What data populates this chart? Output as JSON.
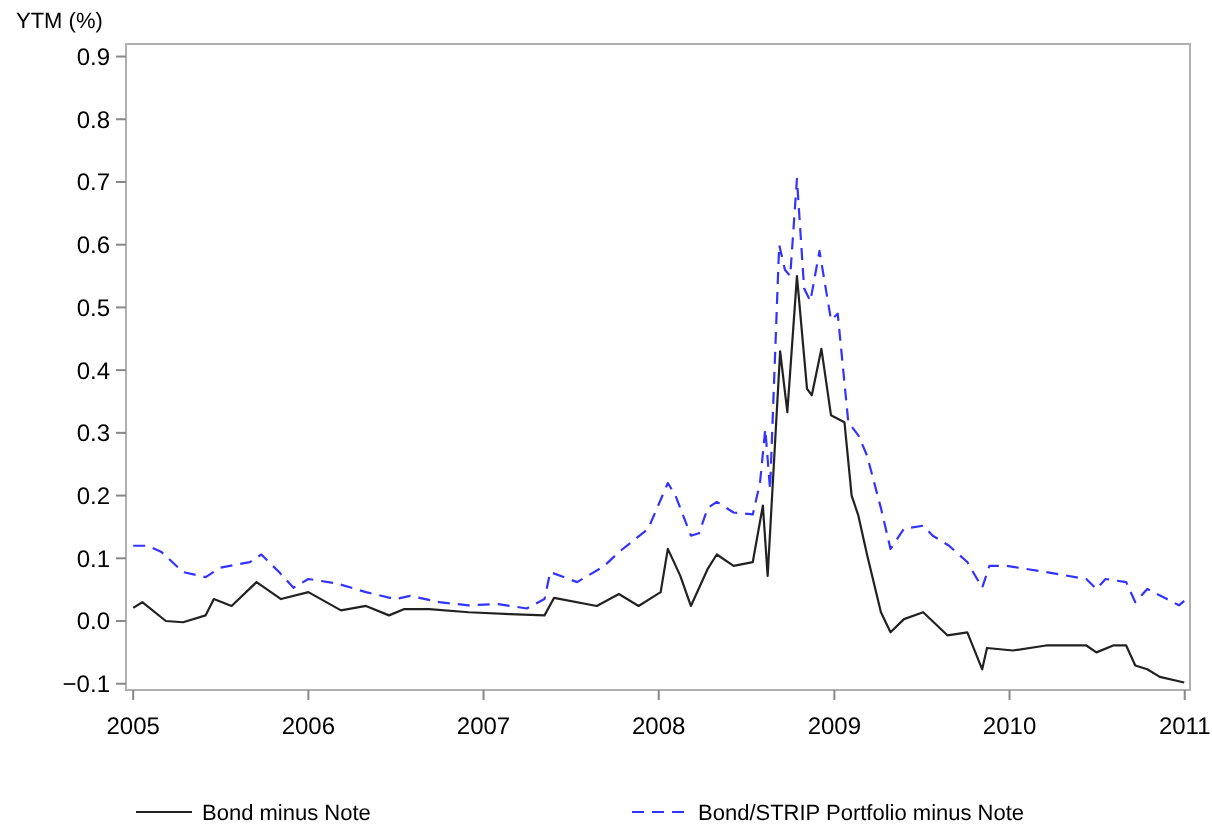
{
  "chart_data": {
    "type": "line",
    "ylabel": "YTM (%)",
    "xlim": [
      "2004-12-17",
      "2011-01-12"
    ],
    "xticks": [
      "2005",
      "2006",
      "2007",
      "2008",
      "2009",
      "2010",
      "2011"
    ],
    "ylim": [
      -0.11,
      0.92
    ],
    "yticks": [
      {
        "value": -0.1,
        "label": "−0.1"
      },
      {
        "value": 0,
        "label": "0.0"
      },
      0.1,
      0.2,
      0.3,
      0.4,
      0.5,
      0.6,
      0.7,
      0.8,
      0.9
    ],
    "grid": false,
    "legend": "bottom",
    "marker": "none",
    "series": [
      {
        "name": "Bond minus Note",
        "color": "#222222",
        "line_style": "solid",
        "x": [
          "2005-01-01",
          "2005-01-20",
          "2005-03-10",
          "2005-04-15",
          "2005-06-01",
          "2005-06-18",
          "2005-07-25",
          "2005-09-15",
          "2005-11-05",
          "2006-01-01",
          "2006-03-10",
          "2006-05-01",
          "2006-06-18",
          "2006-07-20",
          "2006-09-10",
          "2006-12-01",
          "2007-02-25",
          "2007-05-08",
          "2007-05-28",
          "2007-08-25",
          "2007-10-10",
          "2007-11-20",
          "2008-01-05",
          "2008-01-20",
          "2008-02-15",
          "2008-03-08",
          "2008-04-12",
          "2008-05-01",
          "2008-06-05",
          "2008-07-15",
          "2008-08-05",
          "2008-08-15",
          "2008-09-10",
          "2008-09-25",
          "2008-10-15",
          "2008-11-05",
          "2008-11-15",
          "2008-12-05",
          "2008-12-25",
          "2009-01-22",
          "2009-02-06",
          "2009-02-20",
          "2009-03-10",
          "2009-04-08",
          "2009-04-28",
          "2009-05-26",
          "2009-07-05",
          "2009-08-25",
          "2009-10-05",
          "2009-11-05",
          "2009-11-15",
          "2010-01-08",
          "2010-03-18",
          "2010-06-10",
          "2010-07-01",
          "2010-08-05",
          "2010-09-01",
          "2010-09-20",
          "2010-10-15",
          "2010-11-10",
          "2010-12-31"
        ],
        "values": [
          0.021,
          0.03,
          0.0,
          -0.002,
          0.009,
          0.035,
          0.024,
          0.062,
          0.035,
          0.046,
          0.017,
          0.024,
          0.009,
          0.019,
          0.019,
          0.014,
          0.011,
          0.009,
          0.037,
          0.024,
          0.043,
          0.024,
          0.046,
          0.115,
          0.072,
          0.024,
          0.083,
          0.106,
          0.088,
          0.094,
          0.184,
          0.072,
          0.43,
          0.333,
          0.55,
          0.37,
          0.36,
          0.434,
          0.328,
          0.317,
          0.2,
          0.168,
          0.106,
          0.014,
          -0.018,
          0.003,
          0.014,
          -0.023,
          -0.018,
          -0.077,
          -0.043,
          -0.047,
          -0.039,
          -0.039,
          -0.05,
          -0.039,
          -0.039,
          -0.071,
          -0.077,
          -0.089,
          -0.098
        ]
      },
      {
        "name": "Bond/STRIP Portfolio minus Note",
        "color": "#3333ff",
        "line_style": "dashed",
        "x": [
          "2005-01-01",
          "2005-02-01",
          "2005-03-01",
          "2005-04-15",
          "2005-06-01",
          "2005-07-01",
          "2005-09-01",
          "2005-09-25",
          "2005-11-01",
          "2005-12-01",
          "2006-01-01",
          "2006-03-01",
          "2006-05-01",
          "2006-07-01",
          "2006-08-01",
          "2006-10-01",
          "2006-12-01",
          "2007-02-01",
          "2007-04-01",
          "2007-05-08",
          "2007-05-20",
          "2007-07-15",
          "2007-09-10",
          "2007-10-10",
          "2007-12-10",
          "2008-01-20",
          "2008-02-05",
          "2008-03-08",
          "2008-03-25",
          "2008-04-12",
          "2008-05-01",
          "2008-06-05",
          "2008-07-15",
          "2008-07-30",
          "2008-08-10",
          "2008-08-20",
          "2008-09-08",
          "2008-09-20",
          "2008-10-01",
          "2008-10-15",
          "2008-10-30",
          "2008-11-12",
          "2008-12-01",
          "2008-12-25",
          "2009-01-08",
          "2009-01-30",
          "2009-02-20",
          "2009-03-10",
          "2009-04-08",
          "2009-04-28",
          "2009-05-26",
          "2009-07-05",
          "2009-07-25",
          "2009-08-28",
          "2009-10-05",
          "2009-11-05",
          "2009-11-20",
          "2009-12-25",
          "2010-03-18",
          "2010-06-10",
          "2010-07-01",
          "2010-07-20",
          "2010-09-01",
          "2010-09-20",
          "2010-10-15",
          "2010-11-25",
          "2010-12-20",
          "2010-12-31"
        ],
        "values": [
          0.12,
          0.12,
          0.11,
          0.078,
          0.07,
          0.085,
          0.094,
          0.106,
          0.078,
          0.053,
          0.067,
          0.06,
          0.046,
          0.035,
          0.04,
          0.03,
          0.025,
          0.027,
          0.02,
          0.035,
          0.078,
          0.062,
          0.088,
          0.11,
          0.147,
          0.22,
          0.2,
          0.136,
          0.14,
          0.18,
          0.19,
          0.173,
          0.17,
          0.22,
          0.306,
          0.21,
          0.6,
          0.56,
          0.55,
          0.705,
          0.53,
          0.51,
          0.59,
          0.48,
          0.49,
          0.317,
          0.296,
          0.264,
          0.18,
          0.115,
          0.147,
          0.152,
          0.136,
          0.12,
          0.094,
          0.053,
          0.088,
          0.088,
          0.078,
          0.067,
          0.051,
          0.067,
          0.062,
          0.03,
          0.051,
          0.035,
          0.025,
          0.032
        ]
      }
    ]
  }
}
